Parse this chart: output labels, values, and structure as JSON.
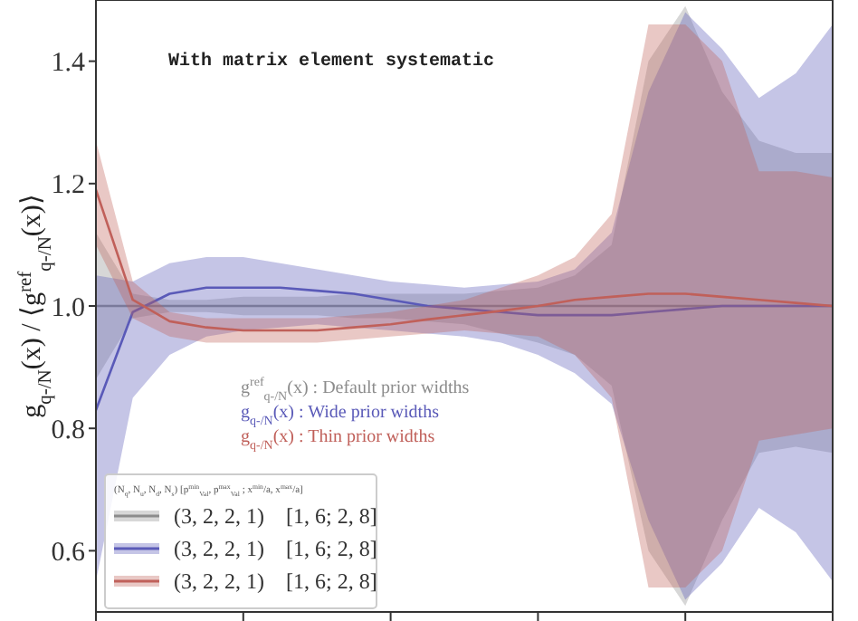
{
  "chart_data": {
    "type": "line",
    "ylabel": "g$_{q-/N}$(x) / ⟨g$^{ref}$$_{q-/N}$(x)⟩",
    "legend_title": "(N$_{q}$, N$_{u}$, N$_{d}$, N$_{s}$)   [p$^{min}$$_{Val}$, p$^{max}$$_{Val}$ ; x$^{min}$/a, x$^{max}$/a]",
    "annotations": [
      "With matrix element systematic",
      "g$^{ref}$$_{q-/N}$(x) :  Default prior widths",
      "g$_{q-/N}$(x) :  Wide prior widths",
      "g$_{q-/N}$(x) :  Thin prior widths"
    ],
    "categories": [
      null,
      null,
      null,
      null,
      null,
      null,
      null,
      null,
      null,
      null,
      null,
      null,
      null,
      null,
      null,
      null,
      null,
      null,
      null,
      null,
      null
    ],
    "ylim": [
      0.5,
      1.5
    ],
    "yticks": [
      {
        "value": 0.6,
        "label": "0.6"
      },
      {
        "value": 0.8,
        "label": "0.8"
      },
      {
        "value": 1.0,
        "label": "1.0"
      },
      {
        "value": 1.2,
        "label": "1.2"
      },
      {
        "value": 1.4,
        "label": "1.4"
      }
    ],
    "tick_labels": "y",
    "grid": false,
    "legend": "bottom left",
    "marker": "none",
    "line_style": "solid",
    "series": [
      {
        "name": "(3, 2, 2, 1)    [1, 6; 2, 8]",
        "color": "#8c8c8c",
        "values": [
          1,
          1,
          1,
          1,
          1,
          1,
          1,
          1,
          1,
          1,
          1,
          1,
          1,
          1,
          1,
          1,
          1,
          1,
          1,
          1,
          1
        ],
        "lower": [
          0.88,
          0.98,
          0.99,
          0.99,
          0.985,
          0.985,
          0.985,
          0.98,
          0.98,
          0.975,
          0.97,
          0.955,
          0.94,
          0.92,
          0.87,
          0.6,
          0.51,
          0.65,
          0.76,
          0.77,
          0.76
        ],
        "upper": [
          1.12,
          1.02,
          1.01,
          1.01,
          1.015,
          1.015,
          1.015,
          1.02,
          1.02,
          1.02,
          1.02,
          1.025,
          1.03,
          1.05,
          1.1,
          1.4,
          1.49,
          1.35,
          1.27,
          1.25,
          1.25
        ]
      },
      {
        "name": "(3, 2, 2, 1)    [1, 6; 2, 8]",
        "color": "#5a5ab8",
        "values": [
          0.83,
          0.99,
          1.02,
          1.03,
          1.03,
          1.03,
          1.025,
          1.02,
          1.01,
          1.0,
          0.995,
          0.99,
          0.985,
          0.985,
          0.985,
          0.99,
          0.995,
          1,
          1,
          1,
          1
        ],
        "lower": [
          0.55,
          0.85,
          0.92,
          0.95,
          0.96,
          0.965,
          0.97,
          0.965,
          0.96,
          0.955,
          0.95,
          0.94,
          0.92,
          0.89,
          0.84,
          0.65,
          0.52,
          0.58,
          0.67,
          0.63,
          0.55
        ],
        "upper": [
          1.05,
          1.04,
          1.07,
          1.08,
          1.08,
          1.07,
          1.06,
          1.05,
          1.04,
          1.035,
          1.03,
          1.035,
          1.04,
          1.06,
          1.12,
          1.35,
          1.48,
          1.42,
          1.34,
          1.38,
          1.46
        ]
      },
      {
        "name": "(3, 2, 2, 1)    [1, 6; 2, 8]",
        "color": "#c0605a",
        "values": [
          1.19,
          1.01,
          0.975,
          0.965,
          0.96,
          0.96,
          0.96,
          0.965,
          0.97,
          0.978,
          0.985,
          0.992,
          1.0,
          1.01,
          1.015,
          1.02,
          1.02,
          1.015,
          1.01,
          1.005,
          1.0
        ],
        "lower": [
          1.1,
          0.98,
          0.95,
          0.94,
          0.94,
          0.94,
          0.94,
          0.945,
          0.95,
          0.955,
          0.96,
          0.955,
          0.95,
          0.92,
          0.85,
          0.54,
          0.54,
          0.6,
          0.78,
          0.79,
          0.8
        ],
        "upper": [
          1.27,
          1.04,
          0.99,
          0.98,
          0.98,
          0.98,
          0.98,
          0.985,
          0.99,
          1.0,
          1.01,
          1.03,
          1.05,
          1.08,
          1.15,
          1.46,
          1.46,
          1.4,
          1.22,
          1.22,
          1.21
        ]
      }
    ]
  }
}
